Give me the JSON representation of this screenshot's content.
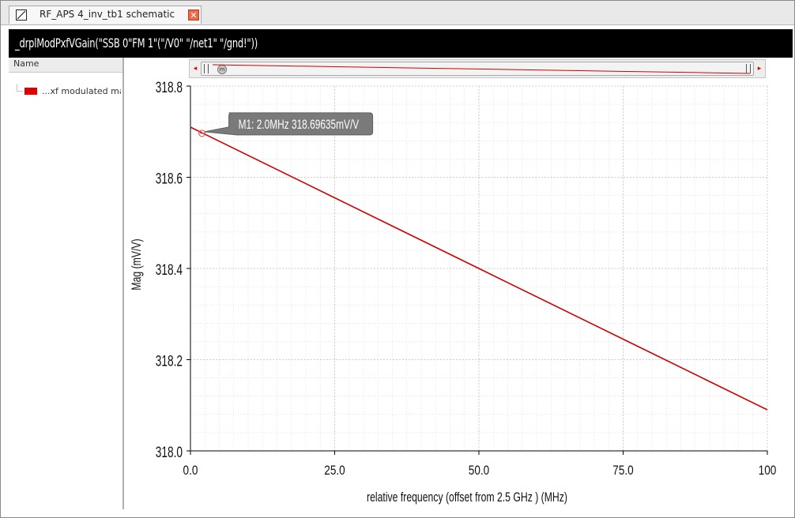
{
  "tab": {
    "title": "RF_APS 4_inv_tb1 schematic",
    "close_glyph": "✕",
    "icon": "schematic-window-icon"
  },
  "plot_title": "_drplModPxfVGain(\"SSB 0\"FM 1\"(\"/V0\"  \"/net1\"  \"/gnd!\"))",
  "legend_panel": {
    "header": "Name",
    "items": [
      {
        "label": "...xf modulated mag",
        "color": "#e00000"
      }
    ]
  },
  "scrollbar": {
    "left_arrow": "◂",
    "right_arrow": "▸",
    "knob_glyph": "m"
  },
  "marker": {
    "label": "M1: 2.0MHz 318.69635mV/V",
    "x": 2.0,
    "y": 318.69635
  },
  "colors": {
    "trace": "#d00000",
    "grid": "#d8d8d8",
    "axis": "#000000",
    "marker_bubble": "#7a7a7a"
  },
  "chart_data": {
    "type": "line",
    "title": "",
    "xlabel": "relative frequency (offset from 2.5 GHz ) (MHz)",
    "ylabel": "Mag (mV/V)",
    "xlim": [
      0,
      100
    ],
    "ylim": [
      318.0,
      318.8
    ],
    "x_ticks": [
      0,
      25,
      50,
      75,
      100
    ],
    "x_tick_labels": [
      "0.0",
      "25.0",
      "50.0",
      "75.0",
      "100"
    ],
    "y_ticks": [
      318.0,
      318.2,
      318.4,
      318.6,
      318.8
    ],
    "y_tick_labels": [
      "318.0",
      "318.2",
      "318.4",
      "318.6",
      "318.8"
    ],
    "grid": true,
    "legend": "left-panel",
    "series": [
      {
        "name": "...xf modulated mag",
        "x": [
          0,
          25,
          50,
          75,
          100
        ],
        "y": [
          318.71,
          318.555,
          318.4,
          318.245,
          318.09
        ]
      }
    ]
  }
}
